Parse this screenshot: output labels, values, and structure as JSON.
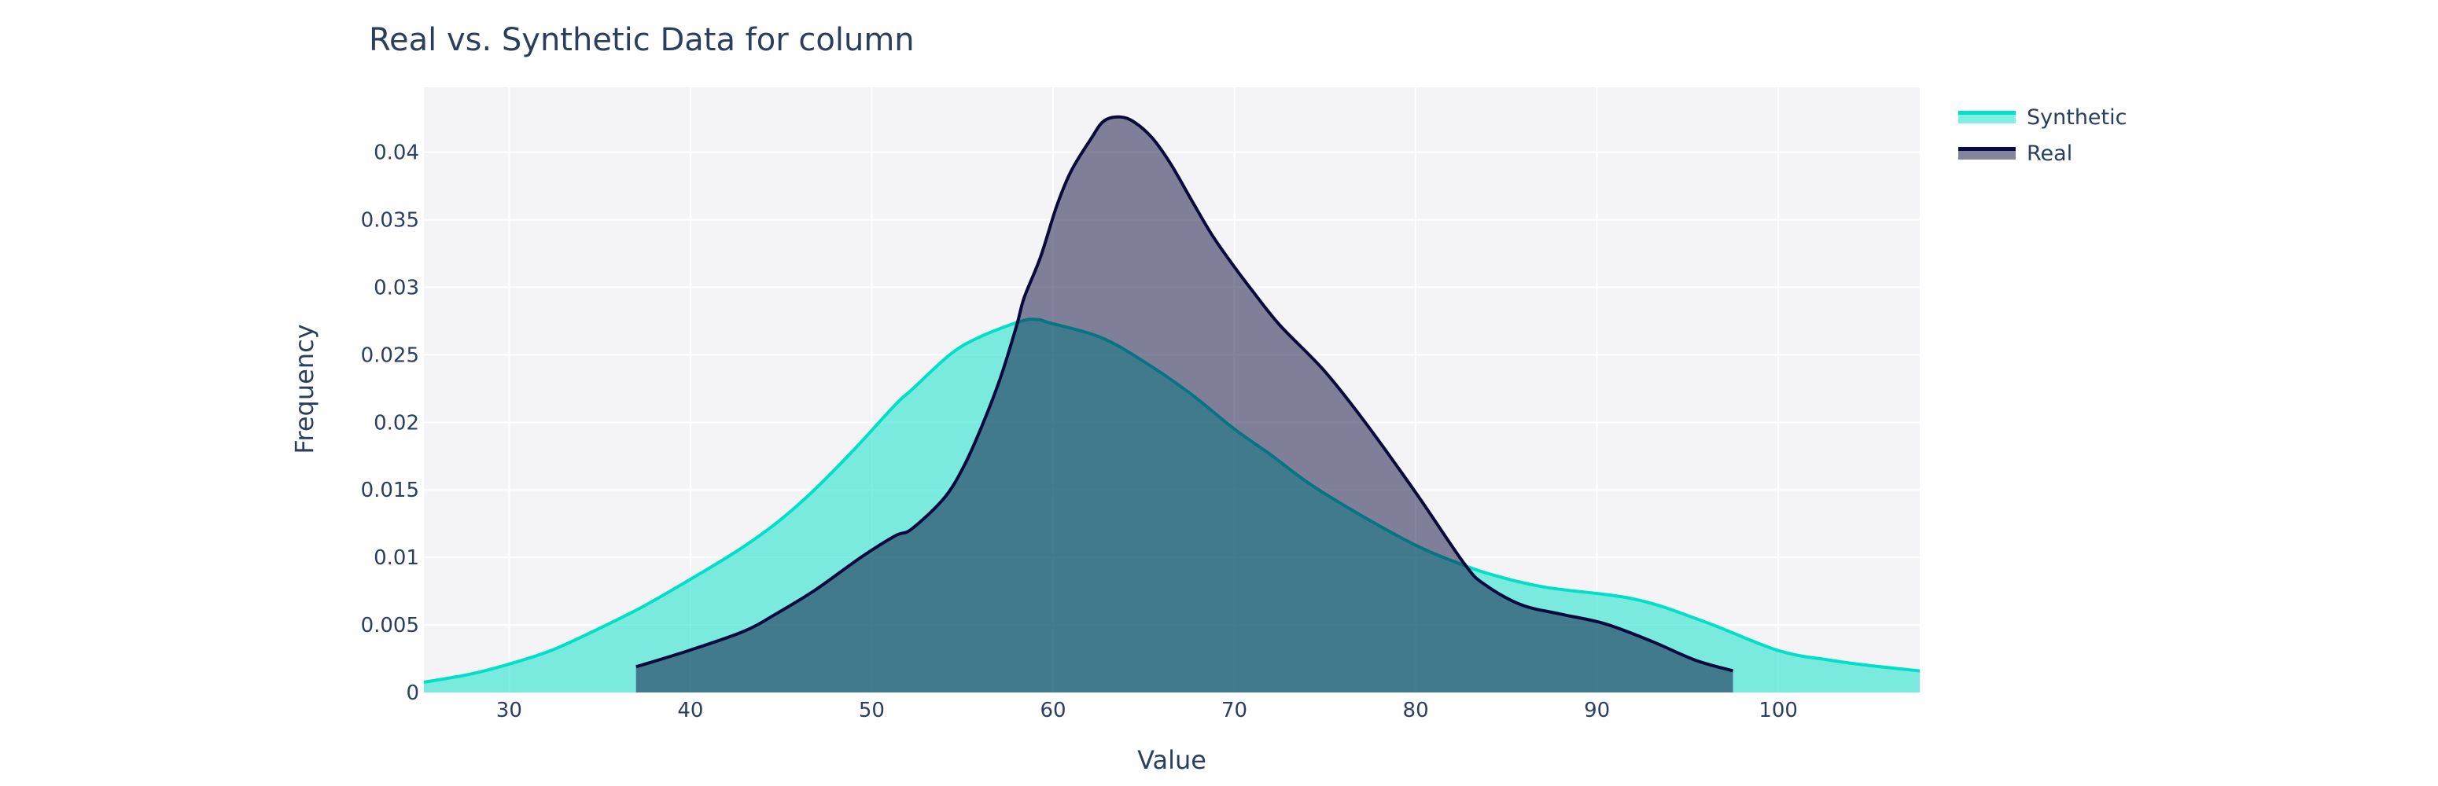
{
  "title": "Real vs. Synthetic Data for column",
  "legend": {
    "items": [
      {
        "label": "Synthetic",
        "line_color": "#00e0c8",
        "fill_color": "rgba(0,224,200,0.5)"
      },
      {
        "label": "Real",
        "line_color": "#0a0a3c",
        "fill_color": "rgba(10,10,60,0.5)"
      }
    ]
  },
  "colors": {
    "plot_bg": "#f4f4f7",
    "grid": "#ffffff",
    "text": "#2a3f5f",
    "synthetic_line": "#00e0c8",
    "synthetic_fill": "rgba(0,224,200,0.5)",
    "real_line": "#0a0a3c",
    "real_fill": "rgba(10,10,60,0.5)"
  },
  "chart_data": {
    "type": "area",
    "title": "Real vs. Synthetic Data for column",
    "xlabel": "Value",
    "ylabel": "Frequency",
    "xlim": [
      25.3,
      107.8
    ],
    "ylim": [
      0,
      0.0448
    ],
    "x_ticks": [
      30,
      40,
      50,
      60,
      70,
      80,
      90,
      100
    ],
    "x_tick_labels": [
      "30",
      "40",
      "50",
      "60",
      "70",
      "80",
      "90",
      "100"
    ],
    "y_ticks": [
      0,
      0.005,
      0.01,
      0.015,
      0.02,
      0.025,
      0.03,
      0.035,
      0.04
    ],
    "y_tick_labels": [
      "0",
      "0.005",
      "0.01",
      "0.015",
      "0.02",
      "0.025",
      "0.03",
      "0.035",
      "0.04"
    ],
    "grid": true,
    "legend_position": "top-right outside",
    "series": [
      {
        "name": "Synthetic",
        "x": [
          25.3,
          27.8,
          30.0,
          32.3,
          34.6,
          37.3,
          39.9,
          42.6,
          44.7,
          46.6,
          48.9,
          51.3,
          52.2,
          54.4,
          56.1,
          58.3,
          59.2,
          59.7,
          62.6,
          65.0,
          67.5,
          70.0,
          72.0,
          74.2,
          77.0,
          80.0,
          82.1,
          84.0,
          87.1,
          92.1,
          96.0,
          100.0,
          102.8,
          105.0,
          107.8
        ],
        "y": [
          0.00076,
          0.00134,
          0.0021,
          0.0031,
          0.0045,
          0.0063,
          0.0083,
          0.0105,
          0.0125,
          0.0147,
          0.0178,
          0.0213,
          0.0224,
          0.0251,
          0.0264,
          0.0275,
          0.0276,
          0.0274,
          0.0263,
          0.0245,
          0.0222,
          0.0195,
          0.0176,
          0.0154,
          0.0131,
          0.0109,
          0.0097,
          0.0088,
          0.0078,
          0.0069,
          0.0052,
          0.0031,
          0.0024,
          0.002,
          0.0016
        ]
      },
      {
        "name": "Real",
        "x": [
          37.0,
          39.9,
          42.9,
          44.7,
          46.9,
          49.4,
          51.3,
          52.2,
          54.0,
          55.1,
          56.1,
          57.1,
          58.0,
          58.4,
          59.3,
          60.2,
          61.0,
          62.1,
          62.8,
          63.7,
          64.5,
          65.5,
          66.5,
          67.7,
          68.8,
          70.0,
          70.9,
          72.5,
          74.9,
          77.1,
          80.0,
          82.7,
          83.8,
          85.8,
          88.0,
          90.4,
          93.0,
          95.4,
          97.5
        ],
        "y": [
          0.0019,
          0.0031,
          0.0045,
          0.0058,
          0.0076,
          0.01,
          0.0116,
          0.0121,
          0.0144,
          0.0168,
          0.0198,
          0.0233,
          0.0272,
          0.0292,
          0.0322,
          0.036,
          0.0386,
          0.041,
          0.0423,
          0.0426,
          0.0422,
          0.041,
          0.0391,
          0.0363,
          0.0338,
          0.0315,
          0.0299,
          0.0272,
          0.0239,
          0.0202,
          0.0148,
          0.0095,
          0.008,
          0.0065,
          0.0058,
          0.0051,
          0.0038,
          0.0024,
          0.0016
        ]
      }
    ]
  }
}
